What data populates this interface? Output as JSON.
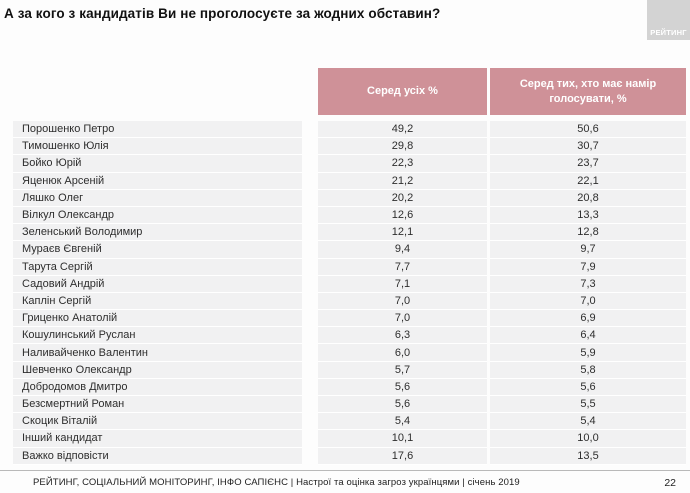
{
  "title": "А за кого з кандидатів Ви не проголосуєте за жодних обставин?",
  "logo": {
    "text": "РЕЙТИНГ"
  },
  "colors": {
    "header_pink": "#cf9198",
    "row_gray": "#f1f1f2",
    "logo_gray": "#d3d3d3"
  },
  "table": {
    "columns": [
      "Серед усіх %",
      "Серед тих, хто має намір голосувати, %"
    ],
    "rows": [
      {
        "name": "Порошенко Петро",
        "all": "49,2",
        "voters": "50,6"
      },
      {
        "name": "Тимошенко Юлія",
        "all": "29,8",
        "voters": "30,7"
      },
      {
        "name": "Бойко Юрій",
        "all": "22,3",
        "voters": "23,7"
      },
      {
        "name": "Яценюк Арсеній",
        "all": "21,2",
        "voters": "22,1"
      },
      {
        "name": "Ляшко Олег",
        "all": "20,2",
        "voters": "20,8"
      },
      {
        "name": "Вілкул Олександр",
        "all": "12,6",
        "voters": "13,3"
      },
      {
        "name": "Зеленський Володимир",
        "all": "12,1",
        "voters": "12,8"
      },
      {
        "name": "Мураєв Євгеній",
        "all": "9,4",
        "voters": "9,7"
      },
      {
        "name": "Тарута Сергій",
        "all": "7,7",
        "voters": "7,9"
      },
      {
        "name": "Садовий Андрій",
        "all": "7,1",
        "voters": "7,3"
      },
      {
        "name": "Каплін Сергій",
        "all": "7,0",
        "voters": "7,0"
      },
      {
        "name": "Гриценко Анатолій",
        "all": "7,0",
        "voters": "6,9"
      },
      {
        "name": "Кошулинський Руслан",
        "all": "6,3",
        "voters": "6,4"
      },
      {
        "name": "Наливайченко Валентин",
        "all": "6,0",
        "voters": "5,9"
      },
      {
        "name": "Шевченко Олександр",
        "all": "5,7",
        "voters": "5,8"
      },
      {
        "name": "Добродомов Дмитро",
        "all": "5,6",
        "voters": "5,6"
      },
      {
        "name": "Безсмертний Роман",
        "all": "5,6",
        "voters": "5,5"
      },
      {
        "name": "Скоцик Віталій",
        "all": "5,4",
        "voters": "5,4"
      },
      {
        "name": "Інший кандидат",
        "all": "10,1",
        "voters": "10,0"
      },
      {
        "name": "Важко відповісти",
        "all": "17,6",
        "voters": "13,5"
      }
    ]
  },
  "footer": {
    "source": "РЕЙТИНГ, СОЦІАЛЬНИЙ МОНІТОРИНГ, ІНФО САПІЄНС | Настрої та оцінка загроз українцями | січень 2019",
    "page": "22"
  },
  "chart_data": {
    "type": "table",
    "title": "А за кого з кандидатів Ви не проголосуєте за жодних обставин?",
    "categories": [
      "Порошенко Петро",
      "Тимошенко Юлія",
      "Бойко Юрій",
      "Яценюк Арсеній",
      "Ляшко Олег",
      "Вілкул Олександр",
      "Зеленський Володимир",
      "Мураєв Євгеній",
      "Тарута Сергій",
      "Садовий Андрій",
      "Каплін Сергій",
      "Гриценко Анатолій",
      "Кошулинський Руслан",
      "Наливайченко Валентин",
      "Шевченко Олександр",
      "Добродомов Дмитро",
      "Безсмертний Роман",
      "Скоцик Віталій",
      "Інший кандидат",
      "Важко відповісти"
    ],
    "series": [
      {
        "name": "Серед усіх %",
        "values": [
          49.2,
          29.8,
          22.3,
          21.2,
          20.2,
          12.6,
          12.1,
          9.4,
          7.7,
          7.1,
          7.0,
          7.0,
          6.3,
          6.0,
          5.7,
          5.6,
          5.6,
          5.4,
          10.1,
          17.6
        ]
      },
      {
        "name": "Серед тих, хто має намір голосувати, %",
        "values": [
          50.6,
          30.7,
          23.7,
          22.1,
          20.8,
          13.3,
          12.8,
          9.7,
          7.9,
          7.3,
          7.0,
          6.9,
          6.4,
          5.9,
          5.8,
          5.6,
          5.5,
          5.4,
          10.0,
          13.5
        ]
      }
    ],
    "unit": "%",
    "decimal_separator": ","
  }
}
